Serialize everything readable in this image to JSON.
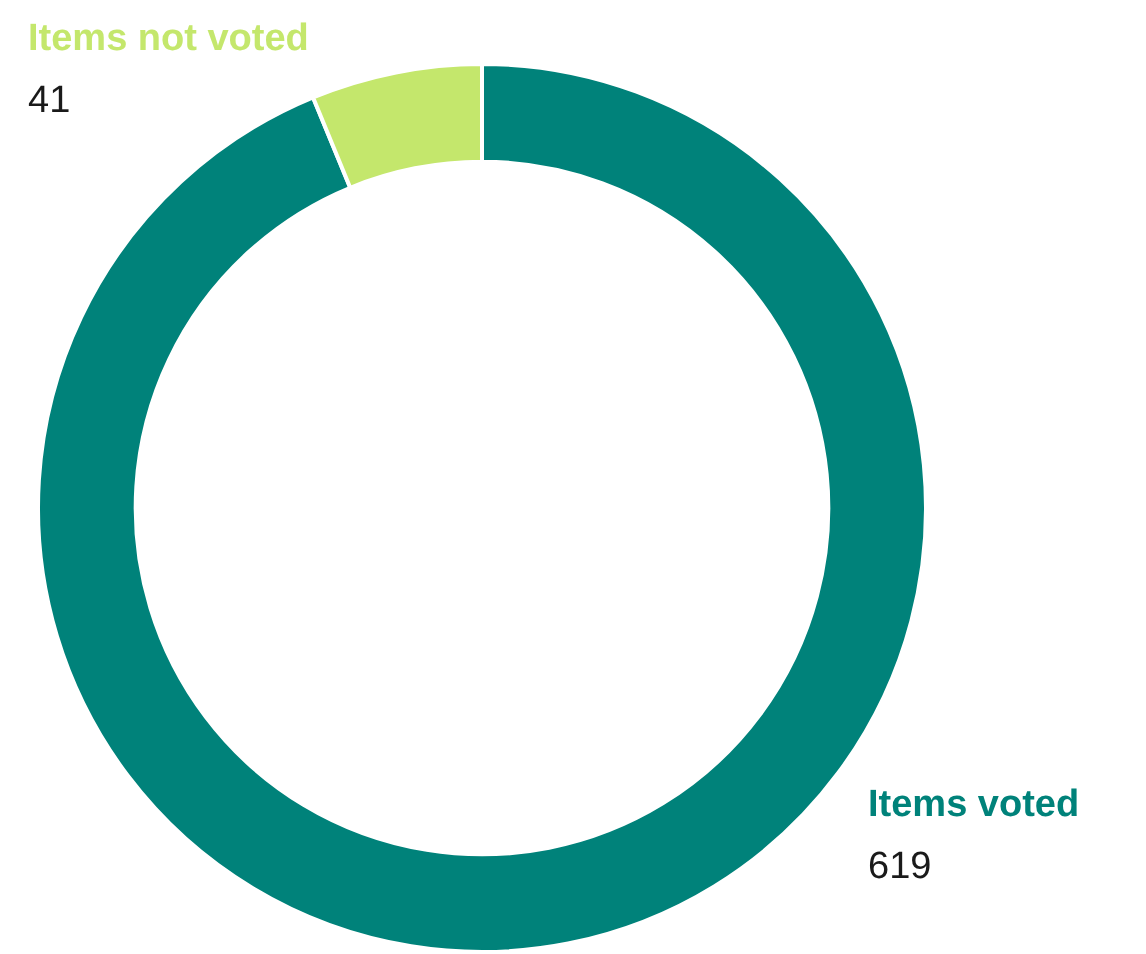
{
  "chart_data": {
    "type": "donut",
    "categories": [
      "Items voted",
      "Items not voted"
    ],
    "values": [
      619,
      41
    ],
    "colors": [
      "#00827a",
      "#c4e76c"
    ],
    "data_labels": true,
    "legend": false
  }
}
